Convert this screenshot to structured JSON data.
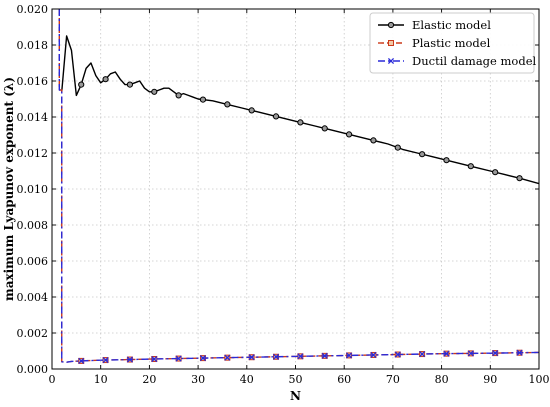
{
  "chart_data": {
    "type": "line",
    "xlabel": "N",
    "ylabel": "maximum Lyapunov exponent (λ)",
    "xlim": [
      0,
      100
    ],
    "ylim": [
      0,
      0.02
    ],
    "x_ticks": [
      0,
      10,
      20,
      30,
      40,
      50,
      60,
      70,
      80,
      90,
      100
    ],
    "y_ticks": [
      0.0,
      0.002,
      0.004,
      0.006,
      0.008,
      0.01,
      0.012,
      0.014,
      0.016,
      0.018,
      0.02
    ],
    "x_tick_labels": [
      "0",
      "10",
      "20",
      "30",
      "40",
      "50",
      "60",
      "70",
      "80",
      "90",
      "100"
    ],
    "y_tick_labels": [
      "0.000",
      "0.002",
      "0.004",
      "0.006",
      "0.008",
      "0.010",
      "0.012",
      "0.014",
      "0.016",
      "0.018",
      "0.020"
    ],
    "grid": true,
    "legend_position": "top-right",
    "series": [
      {
        "name": "Elastic model",
        "color": "#000000",
        "line_style": "solid",
        "marker": "circle",
        "x": [
          2,
          3,
          4,
          5,
          6,
          7,
          8,
          9,
          10,
          11,
          12,
          13,
          14,
          15,
          16,
          17,
          18,
          19,
          20,
          21,
          22,
          23,
          24,
          25,
          26,
          27,
          28,
          29,
          30,
          33,
          36,
          39,
          42,
          45,
          48,
          51,
          54,
          57,
          60,
          63,
          66,
          69,
          72,
          75,
          78,
          81,
          84,
          87,
          90,
          93,
          96,
          100
        ],
        "y": [
          0.0154,
          0.0185,
          0.0177,
          0.0152,
          0.0158,
          0.0167,
          0.017,
          0.0163,
          0.0159,
          0.0161,
          0.0164,
          0.0165,
          0.0161,
          0.0158,
          0.0158,
          0.0159,
          0.016,
          0.0156,
          0.0154,
          0.0154,
          0.0155,
          0.0156,
          0.0156,
          0.0154,
          0.0152,
          0.0153,
          0.0152,
          0.0151,
          0.015,
          0.0149,
          0.0147,
          0.0145,
          0.0143,
          0.0141,
          0.0139,
          0.0137,
          0.0135,
          0.0133,
          0.0131,
          0.0129,
          0.0127,
          0.0125,
          0.0122,
          0.012,
          0.0118,
          0.0116,
          0.0114,
          0.0112,
          0.011,
          0.0108,
          0.0106,
          0.0103
        ],
        "marker_x": [
          6,
          11,
          16,
          21,
          26,
          31,
          36,
          41,
          46,
          51,
          56,
          61,
          66,
          71,
          76,
          81,
          86,
          91,
          96
        ]
      },
      {
        "name": "Plastic model",
        "color": "#cc3a1a",
        "line_style": "dashed",
        "marker": "square",
        "x": [
          1.5,
          1.5,
          2,
          2,
          3,
          4,
          6,
          8,
          10,
          15,
          20,
          30,
          40,
          50,
          60,
          70,
          80,
          90,
          100
        ],
        "y": [
          0.02,
          0.0155,
          0.0155,
          0.0004,
          0.00038,
          0.00042,
          0.00045,
          0.00047,
          0.00049,
          0.00052,
          0.00055,
          0.0006,
          0.00065,
          0.0007,
          0.00075,
          0.0008,
          0.00085,
          0.00088,
          0.00092
        ],
        "marker_x": [
          6,
          11,
          16,
          21,
          26,
          31,
          36,
          41,
          46,
          51,
          56,
          61,
          66,
          71,
          76,
          81,
          86,
          91,
          96
        ]
      },
      {
        "name": "Ductil damage model",
        "color": "#2a2ad8",
        "line_style": "dashdot",
        "marker": "x",
        "x": [
          1.5,
          1.5,
          2,
          2,
          3,
          4,
          6,
          8,
          10,
          15,
          20,
          30,
          40,
          50,
          60,
          70,
          80,
          90,
          100
        ],
        "y": [
          0.02,
          0.0155,
          0.0155,
          0.0004,
          0.00038,
          0.00042,
          0.00045,
          0.00047,
          0.00049,
          0.00052,
          0.00055,
          0.0006,
          0.00065,
          0.0007,
          0.00075,
          0.0008,
          0.00085,
          0.00088,
          0.00092
        ],
        "marker_x": [
          6,
          11,
          16,
          21,
          26,
          31,
          36,
          41,
          46,
          51,
          56,
          61,
          66,
          71,
          76,
          81,
          86,
          91,
          96
        ]
      }
    ]
  }
}
